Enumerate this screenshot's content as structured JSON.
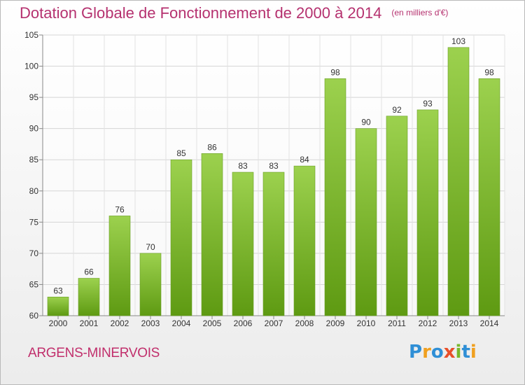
{
  "chart_data": {
    "type": "bar",
    "title": "Dotation Globale de Fonctionnement de 2000 à 2014",
    "unit": "(en milliers d'€)",
    "xlabel": "",
    "ylabel": "",
    "categories": [
      "2000",
      "2001",
      "2002",
      "2003",
      "2004",
      "2005",
      "2006",
      "2007",
      "2008",
      "2009",
      "2010",
      "2011",
      "2012",
      "2013",
      "2014"
    ],
    "values": [
      63,
      66,
      76,
      70,
      85,
      86,
      83,
      83,
      84,
      98,
      90,
      92,
      93,
      103,
      98
    ],
    "ylim": [
      60,
      105
    ],
    "yticks": [
      60,
      65,
      70,
      75,
      80,
      85,
      90,
      95,
      100,
      105
    ],
    "grid": true,
    "legend": "none",
    "bar_color_top": "#9cd14e",
    "bar_color_bottom": "#5e9a12"
  },
  "footer": {
    "place": "ARGENS-MINERVOIS",
    "brand": "Proxiti"
  },
  "colors": {
    "title": "#b5316f",
    "place": "#c12f6c",
    "brand_letters": [
      "#2f8fd6",
      "#f0a020",
      "#2f8fd6",
      "#e84f2a",
      "#78b82a",
      "#2f8fd6",
      "#f0a020"
    ]
  }
}
